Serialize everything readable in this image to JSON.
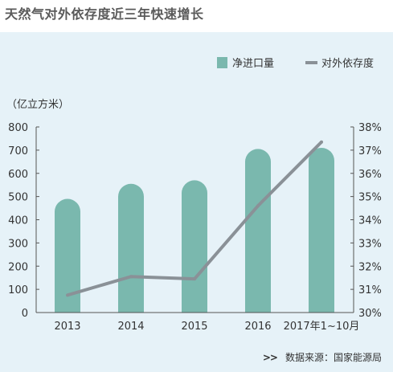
{
  "title": "天然气对外依存度近三年快速增长",
  "source": {
    "marker": ">>",
    "text": "数据来源：国家能源局"
  },
  "chart_data": {
    "type": "bar",
    "categories": [
      "2013",
      "2014",
      "2015",
      "2016",
      "2017年1~10月"
    ],
    "series": [
      {
        "name": "净进口量",
        "type": "bar",
        "axis": "left",
        "values": [
          490,
          555,
          570,
          705,
          710
        ],
        "color": "#7ab8ae"
      },
      {
        "name": "对外依存度",
        "type": "line",
        "axis": "right",
        "values": [
          30.75,
          31.55,
          31.45,
          34.6,
          37.35
        ],
        "color": "#8a9197"
      }
    ],
    "ylabel": "（亿立方米）",
    "ylim": [
      0,
      800
    ],
    "yticks": [
      "0",
      "100",
      "200",
      "300",
      "400",
      "500",
      "600",
      "700",
      "800"
    ],
    "y2lim": [
      30,
      38
    ],
    "y2ticks": [
      "30%",
      "31%",
      "32%",
      "33%",
      "34%",
      "35%",
      "36%",
      "37%",
      "38%"
    ],
    "legend": {
      "position": "top-right",
      "items": [
        "净进口量",
        "对外依存度"
      ]
    },
    "grid": false
  }
}
